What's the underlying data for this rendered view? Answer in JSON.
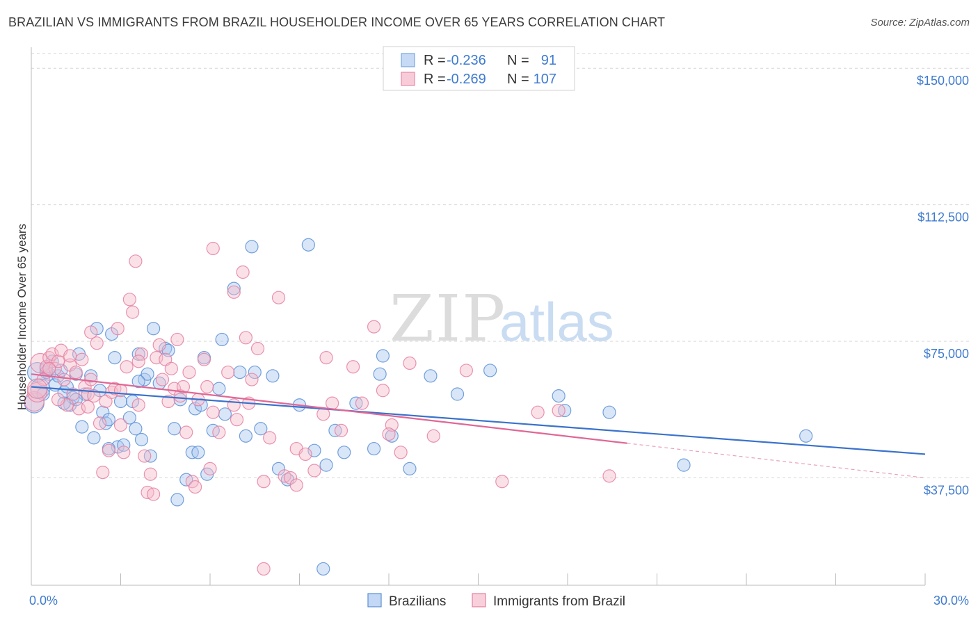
{
  "header": {
    "title": "BRAZILIAN VS IMMIGRANTS FROM BRAZIL HOUSEHOLDER INCOME OVER 65 YEARS CORRELATION CHART",
    "source": "Source: ZipAtlas.com"
  },
  "watermark": {
    "zip": "ZIP",
    "atlas": "atlas"
  },
  "legend_top": [
    {
      "r_label": "R =",
      "r_value": "-0.236",
      "n_label": "N =",
      "n_value": "91",
      "color": "#7aa6e0",
      "fill": "#c6daf5"
    },
    {
      "r_label": "R =",
      "r_value": "-0.269",
      "n_label": "N =",
      "n_value": "107",
      "color": "#e98aa8",
      "fill": "#f8cbd9"
    }
  ],
  "chart_data": {
    "type": "scatter",
    "title": "BRAZILIAN VS IMMIGRANTS FROM BRAZIL HOUSEHOLDER INCOME OVER 65 YEARS CORRELATION CHART",
    "xlabel": "",
    "ylabel": "Householder Income Over 65 years",
    "xlim": [
      0,
      30
    ],
    "ylim": [
      8000,
      155000
    ],
    "x_tick_labels": [
      "0.0%",
      "30.0%"
    ],
    "y_ticks": [
      37500,
      75000,
      112500,
      150000
    ],
    "y_tick_labels": [
      "$37,500",
      "$75,000",
      "$112,500",
      "$150,000"
    ],
    "grid": "horizontal dashed",
    "legend_position": "top-center",
    "series": [
      {
        "name": "Brazilians",
        "color": "#5b8fd6",
        "fill": "#aac8f0",
        "trend": {
          "x": [
            0,
            30
          ],
          "y": [
            62500,
            44000
          ]
        },
        "points": [
          [
            0.1,
            58000
          ],
          [
            0.2,
            66500
          ],
          [
            0.3,
            62000
          ],
          [
            0.4,
            60500
          ],
          [
            0.5,
            67500
          ],
          [
            0.6,
            66000
          ],
          [
            0.7,
            69500
          ],
          [
            0.8,
            63000
          ],
          [
            0.9,
            65500
          ],
          [
            1.0,
            67000
          ],
          [
            1.1,
            61000
          ],
          [
            1.2,
            62500
          ],
          [
            1.3,
            57500
          ],
          [
            1.4,
            59500
          ],
          [
            1.5,
            66000
          ],
          [
            1.6,
            71500
          ],
          [
            1.7,
            51500
          ],
          [
            1.8,
            60500
          ],
          [
            2.0,
            65500
          ],
          [
            2.1,
            48500
          ],
          [
            2.2,
            78500
          ],
          [
            2.3,
            61500
          ],
          [
            2.4,
            55500
          ],
          [
            2.5,
            52500
          ],
          [
            2.6,
            53500
          ],
          [
            2.7,
            77000
          ],
          [
            2.8,
            70500
          ],
          [
            2.9,
            46000
          ],
          [
            3.0,
            58500
          ],
          [
            3.1,
            46500
          ],
          [
            3.3,
            54000
          ],
          [
            3.4,
            58500
          ],
          [
            3.5,
            51000
          ],
          [
            3.6,
            71500
          ],
          [
            3.7,
            48000
          ],
          [
            3.8,
            64500
          ],
          [
            3.9,
            66000
          ],
          [
            4.0,
            43500
          ],
          [
            4.1,
            78500
          ],
          [
            4.3,
            63500
          ],
          [
            4.5,
            73000
          ],
          [
            4.6,
            72500
          ],
          [
            4.8,
            51000
          ],
          [
            5.0,
            59000
          ],
          [
            5.2,
            37000
          ],
          [
            5.4,
            44500
          ],
          [
            5.5,
            56500
          ],
          [
            5.7,
            57500
          ],
          [
            5.8,
            70500
          ],
          [
            5.9,
            38500
          ],
          [
            6.1,
            50500
          ],
          [
            6.3,
            62000
          ],
          [
            6.4,
            75500
          ],
          [
            6.5,
            55000
          ],
          [
            6.8,
            89500
          ],
          [
            7.0,
            66500
          ],
          [
            7.2,
            49000
          ],
          [
            7.5,
            66500
          ],
          [
            7.7,
            51000
          ],
          [
            8.1,
            65500
          ],
          [
            8.6,
            37000
          ],
          [
            9.0,
            57500
          ],
          [
            9.3,
            101500
          ],
          [
            9.5,
            45000
          ],
          [
            9.9,
            41000
          ],
          [
            10.2,
            50500
          ],
          [
            10.5,
            44500
          ],
          [
            10.9,
            58000
          ],
          [
            11.5,
            45500
          ],
          [
            11.7,
            66000
          ],
          [
            11.8,
            71000
          ],
          [
            12.1,
            49000
          ],
          [
            12.7,
            40000
          ],
          [
            13.4,
            65500
          ],
          [
            14.3,
            60500
          ],
          [
            15.4,
            67000
          ],
          [
            17.7,
            60000
          ],
          [
            17.9,
            56000
          ],
          [
            19.4,
            55500
          ],
          [
            21.9,
            41000
          ],
          [
            26.0,
            49000
          ],
          [
            1.5,
            59000
          ],
          [
            4.9,
            31500
          ],
          [
            7.4,
            101000
          ],
          [
            5.6,
            44500
          ],
          [
            9.8,
            12500
          ],
          [
            2.6,
            45500
          ],
          [
            3.6,
            64000
          ],
          [
            0.5,
            66500
          ],
          [
            1.1,
            58000
          ],
          [
            8.3,
            40000
          ]
        ]
      },
      {
        "name": "Immigrants from Brazil",
        "color": "#e67fa1",
        "fill": "#f5bccd",
        "trend": {
          "x": [
            0,
            20
          ],
          "y": [
            66000,
            47000
          ]
        },
        "points": [
          [
            0.1,
            58500
          ],
          [
            0.2,
            61000
          ],
          [
            0.3,
            69000
          ],
          [
            0.4,
            64500
          ],
          [
            0.5,
            68000
          ],
          [
            0.6,
            70500
          ],
          [
            0.7,
            71500
          ],
          [
            0.8,
            67500
          ],
          [
            0.9,
            69500
          ],
          [
            1.0,
            72500
          ],
          [
            1.1,
            64500
          ],
          [
            1.2,
            57500
          ],
          [
            1.3,
            68500
          ],
          [
            1.4,
            60500
          ],
          [
            1.5,
            66500
          ],
          [
            1.6,
            56500
          ],
          [
            1.7,
            70000
          ],
          [
            1.8,
            62500
          ],
          [
            1.9,
            60500
          ],
          [
            2.0,
            77500
          ],
          [
            2.1,
            60000
          ],
          [
            2.2,
            74500
          ],
          [
            2.3,
            52500
          ],
          [
            2.4,
            39000
          ],
          [
            2.5,
            58500
          ],
          [
            2.6,
            45000
          ],
          [
            2.7,
            61000
          ],
          [
            2.8,
            62000
          ],
          [
            2.9,
            78500
          ],
          [
            3.0,
            61500
          ],
          [
            3.1,
            44500
          ],
          [
            3.2,
            68000
          ],
          [
            3.3,
            86500
          ],
          [
            3.4,
            83000
          ],
          [
            3.5,
            97000
          ],
          [
            3.6,
            57500
          ],
          [
            3.7,
            71500
          ],
          [
            3.8,
            43500
          ],
          [
            3.9,
            33500
          ],
          [
            4.0,
            38500
          ],
          [
            4.1,
            33000
          ],
          [
            4.2,
            70500
          ],
          [
            4.3,
            74000
          ],
          [
            4.4,
            64500
          ],
          [
            4.5,
            70000
          ],
          [
            4.7,
            67500
          ],
          [
            4.8,
            62000
          ],
          [
            5.0,
            60000
          ],
          [
            5.1,
            62500
          ],
          [
            5.2,
            50000
          ],
          [
            5.4,
            36500
          ],
          [
            5.5,
            35000
          ],
          [
            5.6,
            59000
          ],
          [
            5.8,
            70000
          ],
          [
            5.9,
            62500
          ],
          [
            6.0,
            40000
          ],
          [
            6.1,
            55500
          ],
          [
            6.3,
            50000
          ],
          [
            6.6,
            66500
          ],
          [
            6.8,
            88500
          ],
          [
            6.9,
            53500
          ],
          [
            7.1,
            94000
          ],
          [
            7.2,
            76000
          ],
          [
            7.3,
            58000
          ],
          [
            7.4,
            64500
          ],
          [
            7.6,
            73000
          ],
          [
            7.8,
            36500
          ],
          [
            8.0,
            48500
          ],
          [
            8.3,
            87000
          ],
          [
            8.5,
            38000
          ],
          [
            8.7,
            37500
          ],
          [
            8.9,
            45500
          ],
          [
            9.2,
            44000
          ],
          [
            9.5,
            39500
          ],
          [
            9.9,
            70500
          ],
          [
            10.1,
            58000
          ],
          [
            10.4,
            50500
          ],
          [
            10.8,
            68000
          ],
          [
            11.1,
            58000
          ],
          [
            11.5,
            79000
          ],
          [
            11.8,
            61500
          ],
          [
            12.1,
            52000
          ],
          [
            12.4,
            44500
          ],
          [
            12.7,
            69000
          ],
          [
            13.5,
            49000
          ],
          [
            14.6,
            67000
          ],
          [
            15.8,
            36500
          ],
          [
            17.0,
            55500
          ],
          [
            17.7,
            56000
          ],
          [
            19.4,
            38000
          ],
          [
            6.1,
            100500
          ],
          [
            7.8,
            12500
          ],
          [
            0.2,
            62000
          ],
          [
            0.6,
            67500
          ],
          [
            1.3,
            71000
          ],
          [
            2.0,
            64500
          ],
          [
            3.6,
            69500
          ],
          [
            4.9,
            75500
          ],
          [
            5.3,
            66500
          ],
          [
            9.8,
            55000
          ],
          [
            12.0,
            49500
          ],
          [
            4.6,
            58500
          ],
          [
            1.9,
            57000
          ],
          [
            0.9,
            59000
          ],
          [
            3.0,
            52000
          ],
          [
            6.8,
            57500
          ],
          [
            8.9,
            35500
          ]
        ]
      }
    ]
  }
}
